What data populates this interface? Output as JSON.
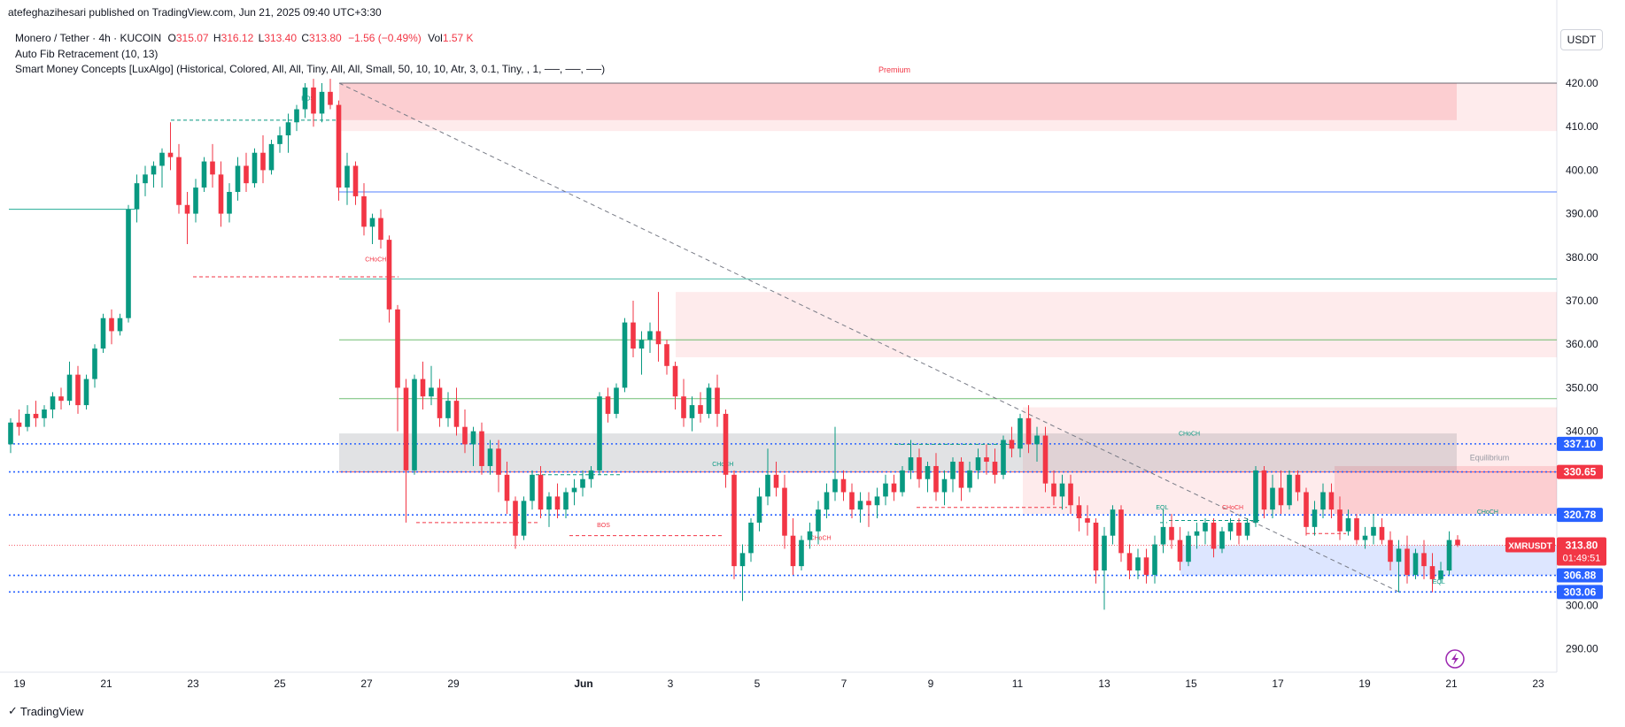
{
  "header": {
    "publisher_line": "atefeghazihesari published on TradingView.com, Jun 21, 2025 09:40 UTC+3:30",
    "symbol_line": "Monero / Tether · 4h · KUCOIN",
    "ohlc": {
      "o_label": "O",
      "o": "315.07",
      "h_label": "H",
      "h": "316.12",
      "l_label": "L",
      "l": "313.40",
      "c_label": "C",
      "c": "313.80",
      "change": "−1.56 (−0.49%)",
      "vol_label": "Vol",
      "vol": "1.57 K"
    },
    "indicator1": "Auto Fib Retracement (10, 13)",
    "indicator2": "Smart Money Concepts [LuxAlgo] (Historical, Colored, All, All, Tiny, All, All, Small, 50, 10, 10, Atr, 3, 0.1, Tiny, , 1, ──, ──, ──)"
  },
  "currency": "USDT",
  "branding": "TradingView",
  "colors": {
    "up": "#089981",
    "down": "#f23645",
    "premium_zone": "#f23645",
    "discount_zone": "#2962ff",
    "equilibrium_zone": "#787b86",
    "level_blue": "#2962ff",
    "level_green": "#4caf50",
    "level_red": "#f23645"
  },
  "chart_data": {
    "type": "candlestick",
    "timeframe": "4h",
    "y_axis_ticks": [
      290,
      300,
      310,
      320,
      330,
      340,
      350,
      360,
      370,
      380,
      390,
      400,
      410,
      420
    ],
    "x_axis_ticks": [
      "19",
      "21",
      "23",
      "25",
      "27",
      "29",
      "Jun",
      "3",
      "5",
      "7",
      "9",
      "11",
      "13",
      "15",
      "17",
      "19",
      "21",
      "23"
    ],
    "ylim": [
      283,
      427
    ],
    "price_labels": [
      {
        "value": "337.10",
        "color": "#2962ff"
      },
      {
        "value": "330.65",
        "color": "#f23645"
      },
      {
        "value": "320.78",
        "color": "#2962ff"
      },
      {
        "value": "306.88",
        "color": "#2962ff"
      },
      {
        "value": "303.06",
        "color": "#2962ff"
      }
    ],
    "last_price": {
      "symbol": "XMRUSDT",
      "price": "313.80",
      "countdown": "01:49:51"
    },
    "zone_labels": {
      "premium": "Premium",
      "equilibrium": "Equilibrium"
    },
    "structure_labels": [
      {
        "text": "BOS",
        "type": "bullish",
        "x": 53.5,
        "y": 416
      },
      {
        "text": "CHoCH",
        "type": "bearish",
        "x": 66,
        "y": 379
      },
      {
        "text": "CHoCH",
        "type": "bullish",
        "x": 130,
        "y": 332
      },
      {
        "text": "BOS",
        "type": "bearish",
        "x": 108,
        "y": 318
      },
      {
        "text": "CHoCH",
        "type": "bearish",
        "x": 148,
        "y": 315
      },
      {
        "text": "CHoCH",
        "type": "bullish",
        "x": 216,
        "y": 339
      },
      {
        "text": "EQL",
        "type": "bullish",
        "x": 211,
        "y": 322
      },
      {
        "text": "CHoCH",
        "type": "bearish",
        "x": 224,
        "y": 322
      },
      {
        "text": "CHoCH",
        "type": "bullish",
        "x": 271,
        "y": 321
      },
      {
        "text": "EQL",
        "type": "bullish",
        "x": 262,
        "y": 305
      },
      {
        "text": "CHoCH",
        "type": "bearish",
        "x": 299,
        "y": 318
      },
      {
        "text": "EQL",
        "type": "bullish",
        "x": 319,
        "y": 302
      }
    ],
    "candles": [
      {
        "o": 337,
        "h": 343,
        "l": 335,
        "c": 342
      },
      {
        "o": 342,
        "h": 345,
        "l": 339,
        "c": 341
      },
      {
        "o": 341,
        "h": 346,
        "l": 340,
        "c": 344
      },
      {
        "o": 344,
        "h": 347,
        "l": 341,
        "c": 343
      },
      {
        "o": 343,
        "h": 346,
        "l": 341,
        "c": 345
      },
      {
        "o": 345,
        "h": 349,
        "l": 343,
        "c": 348
      },
      {
        "o": 348,
        "h": 350,
        "l": 345,
        "c": 347
      },
      {
        "o": 347,
        "h": 356,
        "l": 346,
        "c": 353
      },
      {
        "o": 353,
        "h": 355,
        "l": 344,
        "c": 346
      },
      {
        "o": 346,
        "h": 353,
        "l": 345,
        "c": 352
      },
      {
        "o": 352,
        "h": 360,
        "l": 350,
        "c": 359
      },
      {
        "o": 359,
        "h": 367,
        "l": 358,
        "c": 366
      },
      {
        "o": 366,
        "h": 368,
        "l": 360,
        "c": 363
      },
      {
        "o": 363,
        "h": 367,
        "l": 362,
        "c": 366
      },
      {
        "o": 366,
        "h": 392,
        "l": 365,
        "c": 391
      },
      {
        "o": 391,
        "h": 399,
        "l": 388,
        "c": 397
      },
      {
        "o": 397,
        "h": 401,
        "l": 394,
        "c": 399
      },
      {
        "o": 399,
        "h": 402,
        "l": 396,
        "c": 401
      },
      {
        "o": 401,
        "h": 405,
        "l": 396,
        "c": 404
      },
      {
        "o": 404,
        "h": 411,
        "l": 400,
        "c": 403
      },
      {
        "o": 403,
        "h": 406,
        "l": 390,
        "c": 392
      },
      {
        "o": 392,
        "h": 395,
        "l": 383,
        "c": 390
      },
      {
        "o": 390,
        "h": 398,
        "l": 388,
        "c": 396
      },
      {
        "o": 396,
        "h": 403,
        "l": 395,
        "c": 402
      },
      {
        "o": 402,
        "h": 406,
        "l": 396,
        "c": 399
      },
      {
        "o": 399,
        "h": 402,
        "l": 387,
        "c": 390
      },
      {
        "o": 390,
        "h": 397,
        "l": 388,
        "c": 395
      },
      {
        "o": 395,
        "h": 403,
        "l": 393,
        "c": 401
      },
      {
        "o": 401,
        "h": 404,
        "l": 395,
        "c": 397
      },
      {
        "o": 397,
        "h": 405,
        "l": 396,
        "c": 404
      },
      {
        "o": 404,
        "h": 408,
        "l": 397,
        "c": 400
      },
      {
        "o": 400,
        "h": 407,
        "l": 399,
        "c": 406
      },
      {
        "o": 406,
        "h": 410,
        "l": 404,
        "c": 408
      },
      {
        "o": 408,
        "h": 413,
        "l": 404,
        "c": 411
      },
      {
        "o": 411,
        "h": 415,
        "l": 409,
        "c": 414
      },
      {
        "o": 414,
        "h": 420,
        "l": 412,
        "c": 419
      },
      {
        "o": 419,
        "h": 421,
        "l": 410,
        "c": 413
      },
      {
        "o": 413,
        "h": 420,
        "l": 411,
        "c": 418
      },
      {
        "o": 418,
        "h": 421,
        "l": 414,
        "c": 415
      },
      {
        "o": 415,
        "h": 416,
        "l": 393,
        "c": 396
      },
      {
        "o": 396,
        "h": 404,
        "l": 392,
        "c": 401
      },
      {
        "o": 401,
        "h": 402,
        "l": 392,
        "c": 394
      },
      {
        "o": 394,
        "h": 397,
        "l": 385,
        "c": 387
      },
      {
        "o": 387,
        "h": 390,
        "l": 383,
        "c": 389
      },
      {
        "o": 389,
        "h": 391,
        "l": 382,
        "c": 384
      },
      {
        "o": 384,
        "h": 385,
        "l": 365,
        "c": 368
      },
      {
        "o": 368,
        "h": 369,
        "l": 340,
        "c": 350
      },
      {
        "o": 350,
        "h": 352,
        "l": 319,
        "c": 331
      },
      {
        "o": 331,
        "h": 353,
        "l": 330,
        "c": 352
      },
      {
        "o": 352,
        "h": 356,
        "l": 345,
        "c": 348
      },
      {
        "o": 348,
        "h": 355,
        "l": 346,
        "c": 350
      },
      {
        "o": 350,
        "h": 352,
        "l": 341,
        "c": 343
      },
      {
        "o": 343,
        "h": 349,
        "l": 341,
        "c": 347
      },
      {
        "o": 347,
        "h": 350,
        "l": 339,
        "c": 341
      },
      {
        "o": 341,
        "h": 345,
        "l": 335,
        "c": 337
      },
      {
        "o": 337,
        "h": 341,
        "l": 332,
        "c": 340
      },
      {
        "o": 340,
        "h": 342,
        "l": 330,
        "c": 332
      },
      {
        "o": 332,
        "h": 338,
        "l": 330,
        "c": 336
      },
      {
        "o": 336,
        "h": 338,
        "l": 326,
        "c": 330
      },
      {
        "o": 330,
        "h": 333,
        "l": 321,
        "c": 324
      },
      {
        "o": 324,
        "h": 325,
        "l": 313,
        "c": 316
      },
      {
        "o": 316,
        "h": 325,
        "l": 315,
        "c": 324
      },
      {
        "o": 324,
        "h": 331,
        "l": 322,
        "c": 330
      },
      {
        "o": 330,
        "h": 332,
        "l": 320,
        "c": 322
      },
      {
        "o": 322,
        "h": 326,
        "l": 318,
        "c": 325
      },
      {
        "o": 325,
        "h": 328,
        "l": 320,
        "c": 322
      },
      {
        "o": 322,
        "h": 327,
        "l": 320,
        "c": 326
      },
      {
        "o": 326,
        "h": 329,
        "l": 323,
        "c": 327
      },
      {
        "o": 327,
        "h": 331,
        "l": 325,
        "c": 329
      },
      {
        "o": 329,
        "h": 332,
        "l": 327,
        "c": 331
      },
      {
        "o": 331,
        "h": 349,
        "l": 330,
        "c": 348
      },
      {
        "o": 348,
        "h": 350,
        "l": 342,
        "c": 344
      },
      {
        "o": 344,
        "h": 351,
        "l": 343,
        "c": 350
      },
      {
        "o": 350,
        "h": 366,
        "l": 349,
        "c": 365
      },
      {
        "o": 365,
        "h": 370,
        "l": 357,
        "c": 359
      },
      {
        "o": 359,
        "h": 363,
        "l": 353,
        "c": 361
      },
      {
        "o": 361,
        "h": 365,
        "l": 358,
        "c": 363
      },
      {
        "o": 363,
        "h": 372,
        "l": 356,
        "c": 360
      },
      {
        "o": 360,
        "h": 361,
        "l": 353,
        "c": 355
      },
      {
        "o": 355,
        "h": 356,
        "l": 345,
        "c": 348
      },
      {
        "o": 348,
        "h": 352,
        "l": 341,
        "c": 343
      },
      {
        "o": 343,
        "h": 348,
        "l": 340,
        "c": 346
      },
      {
        "o": 346,
        "h": 349,
        "l": 342,
        "c": 344
      },
      {
        "o": 344,
        "h": 351,
        "l": 343,
        "c": 350
      },
      {
        "o": 350,
        "h": 353,
        "l": 341,
        "c": 344
      },
      {
        "o": 344,
        "h": 345,
        "l": 327,
        "c": 330
      },
      {
        "o": 330,
        "h": 331,
        "l": 306,
        "c": 309
      },
      {
        "o": 309,
        "h": 314,
        "l": 301,
        "c": 312
      },
      {
        "o": 312,
        "h": 320,
        "l": 310,
        "c": 319
      },
      {
        "o": 319,
        "h": 327,
        "l": 317,
        "c": 325
      },
      {
        "o": 325,
        "h": 336,
        "l": 323,
        "c": 330
      },
      {
        "o": 330,
        "h": 333,
        "l": 325,
        "c": 327
      },
      {
        "o": 327,
        "h": 330,
        "l": 313,
        "c": 316
      },
      {
        "o": 316,
        "h": 320,
        "l": 307,
        "c": 309
      },
      {
        "o": 309,
        "h": 316,
        "l": 308,
        "c": 315
      },
      {
        "o": 315,
        "h": 319,
        "l": 313,
        "c": 317
      },
      {
        "o": 317,
        "h": 324,
        "l": 314,
        "c": 322
      },
      {
        "o": 322,
        "h": 328,
        "l": 320,
        "c": 326
      },
      {
        "o": 326,
        "h": 341,
        "l": 324,
        "c": 329
      },
      {
        "o": 329,
        "h": 331,
        "l": 324,
        "c": 326
      },
      {
        "o": 326,
        "h": 328,
        "l": 320,
        "c": 322
      },
      {
        "o": 322,
        "h": 326,
        "l": 319,
        "c": 324
      },
      {
        "o": 324,
        "h": 326,
        "l": 318,
        "c": 323
      },
      {
        "o": 323,
        "h": 327,
        "l": 320,
        "c": 325
      },
      {
        "o": 325,
        "h": 330,
        "l": 323,
        "c": 328
      },
      {
        "o": 328,
        "h": 330,
        "l": 324,
        "c": 326
      },
      {
        "o": 326,
        "h": 332,
        "l": 325,
        "c": 331
      },
      {
        "o": 331,
        "h": 338,
        "l": 329,
        "c": 334
      },
      {
        "o": 334,
        "h": 336,
        "l": 327,
        "c": 329
      },
      {
        "o": 329,
        "h": 333,
        "l": 326,
        "c": 332
      },
      {
        "o": 332,
        "h": 335,
        "l": 324,
        "c": 326
      },
      {
        "o": 326,
        "h": 331,
        "l": 323,
        "c": 329
      },
      {
        "o": 329,
        "h": 334,
        "l": 326,
        "c": 333
      },
      {
        "o": 333,
        "h": 334,
        "l": 324,
        "c": 327
      },
      {
        "o": 327,
        "h": 333,
        "l": 326,
        "c": 331
      },
      {
        "o": 331,
        "h": 336,
        "l": 329,
        "c": 334
      },
      {
        "o": 334,
        "h": 337,
        "l": 330,
        "c": 333
      },
      {
        "o": 333,
        "h": 336,
        "l": 328,
        "c": 330
      },
      {
        "o": 330,
        "h": 339,
        "l": 329,
        "c": 338
      },
      {
        "o": 338,
        "h": 341,
        "l": 334,
        "c": 336
      },
      {
        "o": 336,
        "h": 344,
        "l": 334,
        "c": 343
      },
      {
        "o": 343,
        "h": 346,
        "l": 335,
        "c": 337
      },
      {
        "o": 337,
        "h": 341,
        "l": 333,
        "c": 339
      },
      {
        "o": 339,
        "h": 341,
        "l": 326,
        "c": 328
      },
      {
        "o": 328,
        "h": 331,
        "l": 323,
        "c": 325
      },
      {
        "o": 325,
        "h": 330,
        "l": 322,
        "c": 328
      },
      {
        "o": 328,
        "h": 330,
        "l": 321,
        "c": 323
      },
      {
        "o": 323,
        "h": 325,
        "l": 317,
        "c": 320
      },
      {
        "o": 320,
        "h": 323,
        "l": 316,
        "c": 319
      },
      {
        "o": 319,
        "h": 320,
        "l": 305,
        "c": 308
      },
      {
        "o": 308,
        "h": 318,
        "l": 299,
        "c": 316
      },
      {
        "o": 316,
        "h": 323,
        "l": 314,
        "c": 322
      },
      {
        "o": 322,
        "h": 323,
        "l": 310,
        "c": 312
      },
      {
        "o": 312,
        "h": 314,
        "l": 306,
        "c": 308
      },
      {
        "o": 308,
        "h": 313,
        "l": 306,
        "c": 311
      },
      {
        "o": 311,
        "h": 313,
        "l": 305,
        "c": 307
      },
      {
        "o": 307,
        "h": 316,
        "l": 305,
        "c": 314
      },
      {
        "o": 314,
        "h": 322,
        "l": 312,
        "c": 318
      },
      {
        "o": 318,
        "h": 321,
        "l": 313,
        "c": 315
      },
      {
        "o": 315,
        "h": 318,
        "l": 308,
        "c": 310
      },
      {
        "o": 310,
        "h": 317,
        "l": 309,
        "c": 316
      },
      {
        "o": 316,
        "h": 319,
        "l": 313,
        "c": 317
      },
      {
        "o": 317,
        "h": 320,
        "l": 314,
        "c": 319
      },
      {
        "o": 319,
        "h": 320,
        "l": 311,
        "c": 313
      },
      {
        "o": 313,
        "h": 318,
        "l": 312,
        "c": 317
      },
      {
        "o": 317,
        "h": 320,
        "l": 315,
        "c": 319
      },
      {
        "o": 319,
        "h": 320,
        "l": 314,
        "c": 316
      },
      {
        "o": 316,
        "h": 320,
        "l": 315,
        "c": 319
      },
      {
        "o": 319,
        "h": 332,
        "l": 318,
        "c": 331
      },
      {
        "o": 331,
        "h": 332,
        "l": 320,
        "c": 322
      },
      {
        "o": 322,
        "h": 330,
        "l": 320,
        "c": 327
      },
      {
        "o": 327,
        "h": 331,
        "l": 321,
        "c": 323
      },
      {
        "o": 323,
        "h": 331,
        "l": 322,
        "c": 330
      },
      {
        "o": 330,
        "h": 331,
        "l": 324,
        "c": 326
      },
      {
        "o": 326,
        "h": 327,
        "l": 316,
        "c": 318
      },
      {
        "o": 318,
        "h": 324,
        "l": 316,
        "c": 322
      },
      {
        "o": 322,
        "h": 328,
        "l": 320,
        "c": 326
      },
      {
        "o": 326,
        "h": 328,
        "l": 320,
        "c": 322
      },
      {
        "o": 322,
        "h": 325,
        "l": 315,
        "c": 317
      },
      {
        "o": 317,
        "h": 322,
        "l": 316,
        "c": 320
      },
      {
        "o": 320,
        "h": 321,
        "l": 314,
        "c": 315
      },
      {
        "o": 315,
        "h": 318,
        "l": 313,
        "c": 316
      },
      {
        "o": 316,
        "h": 321,
        "l": 314,
        "c": 318
      },
      {
        "o": 318,
        "h": 320,
        "l": 314,
        "c": 315
      },
      {
        "o": 315,
        "h": 317,
        "l": 308,
        "c": 310
      },
      {
        "o": 310,
        "h": 315,
        "l": 303,
        "c": 313
      },
      {
        "o": 313,
        "h": 316,
        "l": 305,
        "c": 307
      },
      {
        "o": 307,
        "h": 313,
        "l": 306,
        "c": 312
      },
      {
        "o": 312,
        "h": 315,
        "l": 306,
        "c": 309
      },
      {
        "o": 309,
        "h": 312,
        "l": 303,
        "c": 306
      },
      {
        "o": 306,
        "h": 310,
        "l": 305,
        "c": 308
      },
      {
        "o": 308,
        "h": 317,
        "l": 307,
        "c": 315
      },
      {
        "o": 315.07,
        "h": 316.12,
        "l": 313.4,
        "c": 313.8
      }
    ]
  }
}
